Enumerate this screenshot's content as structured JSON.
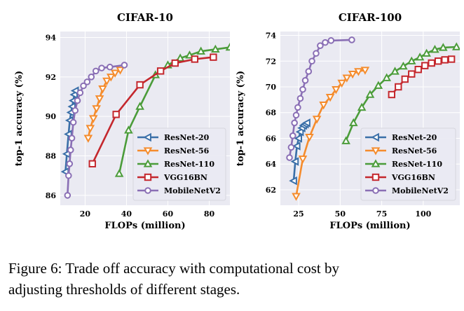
{
  "chart_data": [
    {
      "type": "line",
      "title": "CIFAR-10",
      "xlabel": "FLOPs (million)",
      "ylabel": "top-1 accuracy (%)",
      "xlim": [
        8,
        90
      ],
      "ylim": [
        85.5,
        94.3
      ],
      "xticks": [
        20,
        40,
        60,
        80
      ],
      "yticks": [
        86,
        88,
        90,
        92,
        94
      ],
      "legend": "lower-right",
      "series": [
        {
          "name": "ResNet-20",
          "color": "#3a6fa8",
          "marker": "tri-left",
          "x": [
            10.5,
            11.2,
            12.0,
            12.6,
            13.2,
            13.8,
            14.3,
            14.8,
            15.3
          ],
          "y": [
            87.2,
            88.1,
            89.1,
            89.8,
            90.2,
            90.5,
            90.8,
            91.1,
            91.3
          ]
        },
        {
          "name": "ResNet-56",
          "color": "#f58c2d",
          "marker": "tri-down",
          "x": [
            21.5,
            22.5,
            24.0,
            25.5,
            27.0,
            28.5,
            30.5,
            32.5,
            34.5,
            37.0
          ],
          "y": [
            88.9,
            89.4,
            89.9,
            90.4,
            90.9,
            91.4,
            91.8,
            92.0,
            92.2,
            92.35
          ]
        },
        {
          "name": "ResNet-110",
          "color": "#4b9c3a",
          "marker": "tri-up",
          "x": [
            36.5,
            41.0,
            46.5,
            54.0,
            60.0,
            66.0,
            70.5,
            76.0,
            83.0,
            90.0
          ],
          "y": [
            87.1,
            89.3,
            90.5,
            92.1,
            92.6,
            92.95,
            93.1,
            93.3,
            93.4,
            93.5
          ]
        },
        {
          "name": "VGG16BN",
          "color": "#c4272d",
          "marker": "square",
          "x": [
            23.5,
            35.0,
            46.5,
            56.5,
            63.5,
            73.0,
            82.0
          ],
          "y": [
            87.6,
            90.1,
            91.6,
            92.3,
            92.7,
            92.9,
            93.0
          ]
        },
        {
          "name": "MobileNetV2",
          "color": "#8a6fb5",
          "marker": "circle",
          "x": [
            11.5,
            12.0,
            12.5,
            13.0,
            13.6,
            14.3,
            15.2,
            16.3,
            17.6,
            19.2,
            21.0,
            23.0,
            25.2,
            28.0,
            32.0,
            39.0
          ],
          "y": [
            86.0,
            87.0,
            87.6,
            88.3,
            88.9,
            89.7,
            90.3,
            90.8,
            91.2,
            91.55,
            91.75,
            92.0,
            92.3,
            92.45,
            92.5,
            92.6
          ]
        }
      ]
    },
    {
      "type": "line",
      "title": "CIFAR-100",
      "xlabel": "FLOPs (million)",
      "ylabel": "top-1 accuracy (%)",
      "xlim": [
        14,
        122
      ],
      "ylim": [
        60.8,
        74.3
      ],
      "xticks": [
        25,
        50,
        75,
        100
      ],
      "yticks": [
        62,
        64,
        66,
        68,
        70,
        72,
        74
      ],
      "legend": "lower-right",
      "series": [
        {
          "name": "ResNet-20",
          "color": "#3a6fa8",
          "marker": "tri-left",
          "x": [
            22.0,
            23.0,
            24.0,
            25.0,
            26.0,
            27.0,
            28.0,
            29.0,
            30.0
          ],
          "y": [
            62.7,
            64.2,
            65.4,
            66.0,
            66.5,
            66.8,
            67.0,
            67.1,
            67.2
          ]
        },
        {
          "name": "ResNet-56",
          "color": "#f58c2d",
          "marker": "tri-down",
          "x": [
            23.5,
            27.5,
            31.5,
            36.0,
            40.0,
            44.0,
            47.5,
            51.0,
            54.0,
            57.5,
            61.0,
            65.0
          ],
          "y": [
            61.5,
            64.4,
            66.1,
            67.5,
            68.6,
            69.2,
            69.8,
            70.3,
            70.7,
            71.0,
            71.2,
            71.3
          ]
        },
        {
          "name": "ResNet-110",
          "color": "#4b9c3a",
          "marker": "tri-up",
          "x": [
            53.5,
            58.0,
            63.0,
            68.0,
            73.0,
            78.0,
            83.0,
            88.0,
            93.0,
            98.0,
            102.0,
            107.0,
            112.0,
            120.0
          ],
          "y": [
            65.8,
            67.2,
            68.4,
            69.4,
            70.1,
            70.7,
            71.2,
            71.6,
            72.0,
            72.3,
            72.6,
            72.9,
            73.05,
            73.1
          ]
        },
        {
          "name": "VGG16BN",
          "color": "#c4272d",
          "marker": "square",
          "x": [
            81.0,
            85.0,
            89.0,
            93.0,
            97.0,
            101.0,
            105.0,
            109.0,
            113.0,
            117.0
          ],
          "y": [
            69.4,
            70.0,
            70.6,
            71.0,
            71.35,
            71.65,
            71.85,
            72.0,
            72.1,
            72.15
          ]
        },
        {
          "name": "MobileNetV2",
          "color": "#8a6fb5",
          "marker": "circle",
          "x": [
            19.5,
            20.5,
            21.5,
            22.5,
            23.5,
            24.5,
            26.0,
            27.5,
            29.0,
            31.0,
            33.0,
            35.5,
            38.0,
            41.0,
            44.5,
            57.0
          ],
          "y": [
            64.5,
            65.3,
            66.2,
            67.2,
            67.8,
            68.4,
            69.1,
            69.8,
            70.5,
            71.2,
            72.0,
            72.6,
            73.2,
            73.45,
            73.6,
            73.65
          ]
        }
      ]
    }
  ],
  "caption": {
    "line1": "Figure 6:  Trade off accuracy with computational cost by",
    "line2": "adjusting thresholds of different stages."
  }
}
